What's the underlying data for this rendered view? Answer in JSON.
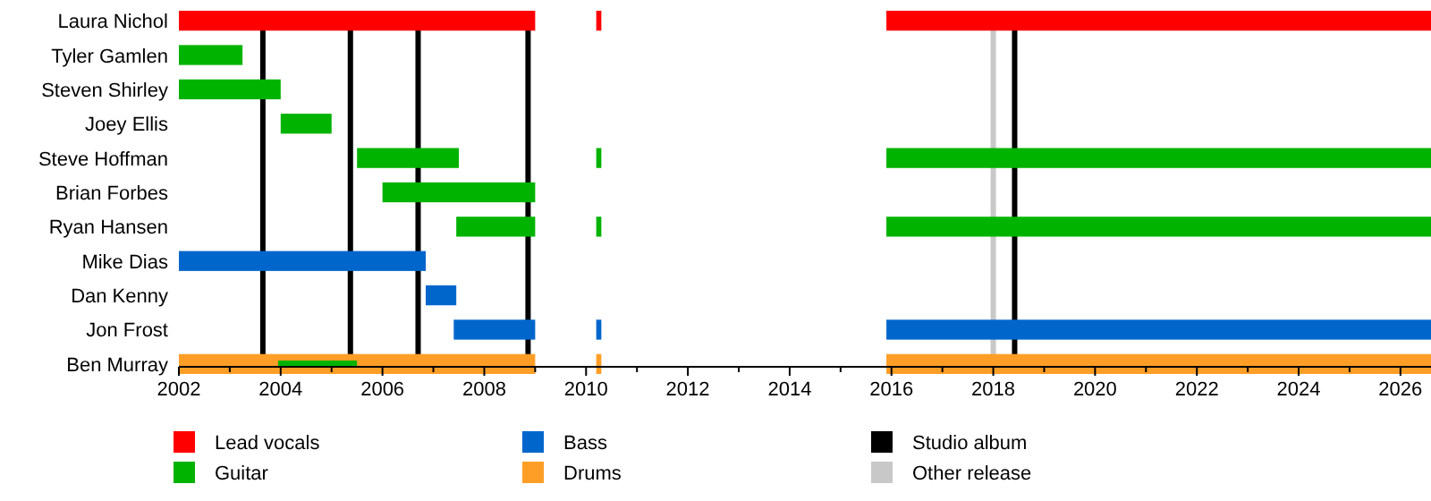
{
  "chart_data": {
    "type": "bar",
    "orientation": "horizontal",
    "categories": [
      "Laura Nichol",
      "Tyler Gamlen",
      "Steven Shirley",
      "Joey Ellis",
      "Steve Hoffman",
      "Brian Forbes",
      "Ryan Hansen",
      "Mike Dias",
      "Dan Kenny",
      "Jon Frost",
      "Ben Murray"
    ],
    "series": [
      {
        "name": "Lead vocals",
        "color": "#ff0000",
        "base": [
          2002,
          null,
          null,
          null,
          null,
          null,
          null,
          null,
          null,
          null,
          null
        ],
        "values": [
          7.0,
          null,
          null,
          null,
          null,
          null,
          null,
          null,
          null,
          null,
          null
        ]
      },
      {
        "color": "#ff0000",
        "base": [
          2010.2,
          null,
          null,
          null,
          null,
          null,
          null,
          null,
          null,
          null,
          null
        ],
        "values": [
          0.1,
          null,
          null,
          null,
          null,
          null,
          null,
          null,
          null,
          null,
          null
        ]
      },
      {
        "color": "#ff0000",
        "base": [
          2015.9,
          null,
          null,
          null,
          null,
          null,
          null,
          null,
          null,
          null,
          null
        ],
        "values": [
          10.7,
          null,
          null,
          null,
          null,
          null,
          null,
          null,
          null,
          null,
          null
        ]
      },
      {
        "name": "Guitar",
        "color": "#00b300",
        "base": [
          null,
          2002,
          2002,
          2004,
          2005.5,
          2006,
          2007.45,
          null,
          null,
          null,
          null
        ],
        "values": [
          null,
          1.25,
          2.0,
          1.0,
          2.0,
          3.0,
          1.55,
          null,
          null,
          null,
          null
        ]
      },
      {
        "color": "#00b300",
        "base": [
          null,
          null,
          null,
          null,
          2010.2,
          null,
          2010.2,
          null,
          null,
          null,
          null
        ],
        "values": [
          null,
          null,
          null,
          null,
          0.1,
          null,
          0.1,
          null,
          null,
          null,
          null
        ]
      },
      {
        "color": "#00b300",
        "base": [
          null,
          null,
          null,
          null,
          2015.9,
          null,
          2015.9,
          null,
          null,
          null,
          null
        ],
        "values": [
          null,
          null,
          null,
          null,
          10.7,
          null,
          10.7,
          null,
          null,
          null,
          null
        ]
      },
      {
        "name": "Bass",
        "color": "#0066cc",
        "base": [
          null,
          null,
          null,
          null,
          null,
          null,
          null,
          2002,
          2006.85,
          2007.4,
          null
        ],
        "values": [
          null,
          null,
          null,
          null,
          null,
          null,
          null,
          4.85,
          0.6,
          1.6,
          null
        ]
      },
      {
        "color": "#0066cc",
        "base": [
          null,
          null,
          null,
          null,
          null,
          null,
          null,
          null,
          null,
          2010.2,
          null
        ],
        "values": [
          null,
          null,
          null,
          null,
          null,
          null,
          null,
          null,
          null,
          0.1,
          null
        ]
      },
      {
        "color": "#0066cc",
        "base": [
          null,
          null,
          null,
          null,
          null,
          null,
          null,
          null,
          null,
          2015.9,
          null
        ],
        "values": [
          null,
          null,
          null,
          null,
          null,
          null,
          null,
          null,
          null,
          10.7,
          null
        ]
      },
      {
        "name": "Drums",
        "color": "#ff9e26",
        "base": [
          null,
          null,
          null,
          null,
          null,
          null,
          null,
          null,
          null,
          null,
          2002
        ],
        "values": [
          null,
          null,
          null,
          null,
          null,
          null,
          null,
          null,
          null,
          null,
          7.0
        ]
      },
      {
        "color": "#ff9e26",
        "base": [
          null,
          null,
          null,
          null,
          null,
          null,
          null,
          null,
          null,
          null,
          2010.2
        ],
        "values": [
          null,
          null,
          null,
          null,
          null,
          null,
          null,
          null,
          null,
          null,
          0.1
        ]
      },
      {
        "color": "#ff9e26",
        "base": [
          null,
          null,
          null,
          null,
          null,
          null,
          null,
          null,
          null,
          null,
          2015.9
        ],
        "values": [
          null,
          null,
          null,
          null,
          null,
          null,
          null,
          null,
          null,
          null,
          10.7
        ]
      },
      {
        "color": "#00b300",
        "base": [
          null,
          null,
          null,
          null,
          null,
          null,
          null,
          null,
          null,
          null,
          2003.95
        ],
        "values": [
          null,
          null,
          null,
          null,
          null,
          null,
          null,
          null,
          null,
          null,
          1.55
        ]
      }
    ],
    "ref_lines": [
      {
        "axis": "x",
        "value": 2003.65,
        "label": "Studio album",
        "color": "#000000"
      },
      {
        "axis": "x",
        "value": 2005.37,
        "color": "#000000"
      },
      {
        "axis": "x",
        "value": 2006.7,
        "color": "#000000"
      },
      {
        "axis": "x",
        "value": 2008.86,
        "color": "#000000"
      },
      {
        "axis": "x",
        "value": 2018.0,
        "label": "Other release",
        "color": "#c8c8c8"
      },
      {
        "axis": "x",
        "value": 2018.42,
        "color": "#000000"
      }
    ],
    "xlim": [
      2002,
      2026.6
    ],
    "xticks": [
      2002,
      {
        "value": 2003,
        "label": null
      },
      2004,
      {
        "value": 2005,
        "label": null
      },
      2006,
      {
        "value": 2007,
        "label": null
      },
      2008,
      {
        "value": 2009,
        "label": null
      },
      2010,
      {
        "value": 2011,
        "label": null
      },
      2012,
      {
        "value": 2013,
        "label": null
      },
      2014,
      {
        "value": 2015,
        "label": null
      },
      2016,
      {
        "value": 2017,
        "label": null
      },
      2018,
      {
        "value": 2019,
        "label": null
      },
      2020,
      {
        "value": 2021,
        "label": null
      },
      2022,
      {
        "value": 2023,
        "label": null
      },
      2024,
      {
        "value": 2025,
        "label": null
      },
      2026
    ],
    "legend": "bottom",
    "grid": false
  }
}
